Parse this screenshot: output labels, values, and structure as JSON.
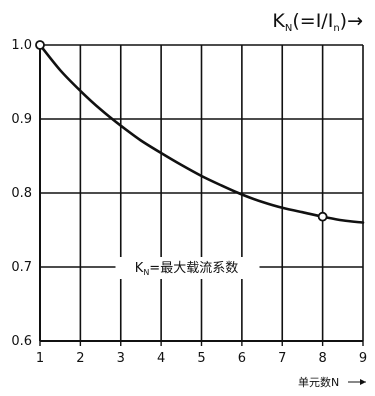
{
  "chart_data": {
    "type": "line",
    "title": "K_N(=I/I_n)→",
    "title_parts": {
      "k": "K",
      "k_sub": "N",
      "mid": "(=I/I",
      "n_sub": "n",
      "end": ")→"
    },
    "xlabel": "单元数N",
    "ylabel": "",
    "xlim": [
      1,
      9
    ],
    "ylim": [
      0.6,
      1.0
    ],
    "x_ticks": [
      1,
      2,
      3,
      4,
      5,
      6,
      7,
      8,
      9
    ],
    "y_ticks": [
      1.0,
      0.9,
      0.8,
      0.7,
      0.6
    ],
    "x_tick_labels": [
      "1",
      "2",
      "3",
      "4",
      "5",
      "6",
      "7",
      "8",
      "9"
    ],
    "y_tick_labels": [
      "1.0",
      "0.9",
      "0.8",
      "0.7",
      "0.6"
    ],
    "grid": true,
    "series": [
      {
        "x": [
          1,
          1.5,
          2,
          2.5,
          3,
          3.5,
          4,
          4.5,
          5,
          5.5,
          6,
          6.5,
          7,
          7.5,
          8,
          8.5,
          9
        ],
        "values": [
          1.0,
          0.966,
          0.938,
          0.913,
          0.891,
          0.871,
          0.854,
          0.838,
          0.823,
          0.81,
          0.798,
          0.788,
          0.78,
          0.774,
          0.768,
          0.763,
          0.76
        ],
        "color": "#111111"
      }
    ],
    "markers": [
      {
        "x": 1,
        "y": 1.0
      },
      {
        "x": 8,
        "y": 0.768
      }
    ],
    "annotation": {
      "k": "K",
      "sub": "N",
      "rest": "=最大载流系数",
      "x": 5,
      "y": 0.7
    }
  }
}
